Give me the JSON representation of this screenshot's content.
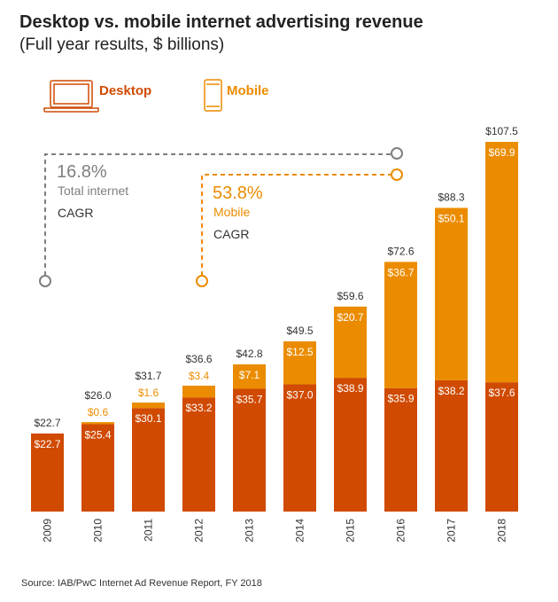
{
  "header": {
    "title": "Desktop vs. mobile internet advertising revenue",
    "subtitle": "(Full year results, $ billions)"
  },
  "legend": [
    {
      "label": "Desktop",
      "icon": "laptop-icon",
      "color": "#D04A02"
    },
    {
      "label": "Mobile",
      "icon": "phone-icon",
      "color": "#EB8C00"
    }
  ],
  "annotations": {
    "total": {
      "value": "16.8%",
      "label": "Total internet",
      "suffix": "CAGR",
      "color": "#7F7F7F"
    },
    "mobile": {
      "value": "53.8%",
      "label": "Mobile",
      "suffix": "CAGR",
      "color": "#EB8C00"
    }
  },
  "chart_data": {
    "type": "bar",
    "stacked": true,
    "categories": [
      "2009",
      "2010",
      "2011",
      "2012",
      "2013",
      "2014",
      "2015",
      "2016",
      "2017",
      "2018"
    ],
    "series": [
      {
        "name": "Desktop",
        "color": "#D04A02",
        "values": [
          22.7,
          25.4,
          30.1,
          33.2,
          35.7,
          37.0,
          38.9,
          35.9,
          38.2,
          37.6
        ],
        "labels": [
          "$22.7",
          "$25.4",
          "$30.1",
          "$33.2",
          "$35.7",
          "$37.0",
          "$38.9",
          "$35.9",
          "$38.2",
          "$37.6"
        ]
      },
      {
        "name": "Mobile",
        "color": "#EB8C00",
        "values": [
          0,
          0.6,
          1.6,
          3.4,
          7.1,
          12.5,
          20.7,
          36.7,
          50.1,
          69.9
        ],
        "labels": [
          "",
          "$0.6",
          "$1.6",
          "$3.4",
          "$7.1",
          "$12.5",
          "$20.7",
          "$36.7",
          "$50.1",
          "$69.9"
        ]
      }
    ],
    "totals": [
      "$22.7",
      "$26.0",
      "$31.7",
      "$36.6",
      "$42.8",
      "$49.5",
      "$59.6",
      "$72.6",
      "$88.3",
      "$107.5"
    ],
    "ylim": [
      0,
      107.5
    ],
    "grid": false
  },
  "source": "Source: IAB/PwC Internet Ad Revenue Report,  FY 2018"
}
